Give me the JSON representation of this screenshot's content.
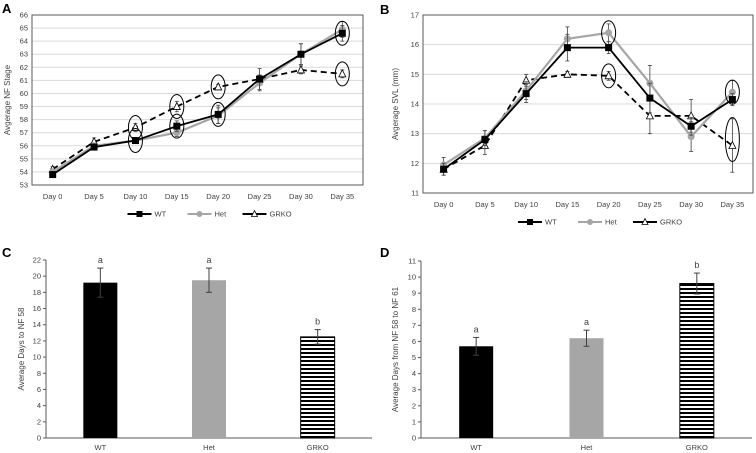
{
  "colors": {
    "wt": "#000000",
    "het": "#a6a6a6",
    "grko": "#000000",
    "grid": "#d9d9d9",
    "axis": "#595959"
  },
  "chart_data": [
    {
      "panel": "A",
      "type": "line",
      "title": "",
      "xlabel": "",
      "ylabel": "Avgerage NF Stage",
      "ylim": [
        53,
        66
      ],
      "yticks": [
        53,
        54,
        55,
        56,
        57,
        58,
        59,
        60,
        61,
        62,
        63,
        64,
        65,
        66
      ],
      "categories": [
        "Day 0",
        "Day 5",
        "Day 10",
        "Day 15",
        "Day 20",
        "Day 25",
        "Day 30",
        "Day 35"
      ],
      "grid": true,
      "legend": "bottom",
      "series": [
        {
          "name": "WT",
          "values": [
            53.8,
            55.9,
            56.4,
            57.5,
            58.4,
            61.1,
            63.0,
            64.6
          ],
          "errors": [
            0.2,
            0.2,
            0.2,
            0.4,
            0.7,
            0.8,
            0.8,
            0.6
          ]
        },
        {
          "name": "Het",
          "values": [
            54.0,
            56.0,
            56.4,
            57.0,
            58.3,
            60.8,
            63.0,
            64.9
          ],
          "errors": [
            0.2,
            0.2,
            0.2,
            0.3,
            0.6,
            0.6,
            0.8,
            0.6
          ]
        },
        {
          "name": "GRKO",
          "values": [
            54.2,
            56.3,
            57.4,
            59.0,
            60.5,
            61.1,
            61.8,
            61.5
          ],
          "errors": [
            0.2,
            0.3,
            0.3,
            0.4,
            0.2,
            0.3,
            0.3,
            0.3
          ]
        }
      ],
      "annotations": "ellipses around Day 10, 15, 20, 35 points"
    },
    {
      "panel": "B",
      "type": "line",
      "title": "",
      "xlabel": "",
      "ylabel": "Avgerage SVL (mm)",
      "ylim": [
        11,
        17
      ],
      "yticks": [
        11,
        12,
        13,
        14,
        15,
        16,
        17
      ],
      "categories": [
        "Day 0",
        "Day 5",
        "Day 10",
        "Day 15",
        "Day 20",
        "Day 25",
        "Day 30",
        "Day 35"
      ],
      "grid": true,
      "legend": "bottom",
      "series": [
        {
          "name": "WT",
          "values": [
            11.8,
            12.8,
            14.35,
            15.9,
            15.9,
            14.2,
            13.25,
            14.15
          ],
          "errors": [
            0.2,
            0.3,
            0.3,
            0.45,
            0.2,
            0.5,
            0.3,
            0.2
          ]
        },
        {
          "name": "Het",
          "values": [
            11.95,
            12.85,
            14.45,
            16.2,
            16.4,
            14.7,
            12.9,
            14.4
          ],
          "errors": [
            0.25,
            0.25,
            0.3,
            0.4,
            0.3,
            0.6,
            0.5,
            0.4
          ]
        },
        {
          "name": "GRKO",
          "values": [
            11.8,
            12.6,
            14.8,
            15.0,
            14.95,
            13.6,
            13.6,
            12.6
          ],
          "errors": [
            0.2,
            0.3,
            0.2,
            0.1,
            0.15,
            0.6,
            0.55,
            0.9
          ]
        }
      ],
      "annotations": "ellipses around Day 20 and Day 35 points"
    },
    {
      "panel": "C",
      "type": "bar",
      "title": "",
      "xlabel": "",
      "ylabel": "Average Days to NF 58",
      "ylim": [
        0,
        22
      ],
      "yticks": [
        0,
        2,
        4,
        6,
        8,
        10,
        12,
        14,
        16,
        18,
        20,
        22
      ],
      "categories": [
        "WT",
        "Het",
        "GRKO"
      ],
      "values": [
        19.2,
        19.5,
        12.5
      ],
      "errors": [
        1.8,
        1.5,
        0.9
      ],
      "significance": [
        "a",
        "a",
        "b"
      ],
      "grid": false
    },
    {
      "panel": "D",
      "type": "bar",
      "title": "",
      "xlabel": "",
      "ylabel": "Average  Days from NF 58 to NF 61",
      "ylim": [
        0,
        11
      ],
      "yticks": [
        0,
        1,
        2,
        3,
        4,
        5,
        6,
        7,
        8,
        9,
        10,
        11
      ],
      "categories": [
        "WT",
        "Het",
        "GRKO"
      ],
      "values": [
        5.7,
        6.2,
        9.6
      ],
      "errors": [
        0.55,
        0.5,
        0.65
      ],
      "significance": [
        "a",
        "a",
        "b"
      ],
      "grid": false
    }
  ],
  "legend_labels": [
    "WT",
    "Het",
    "GRKO"
  ],
  "panel_labels": [
    "A",
    "B",
    "C",
    "D"
  ]
}
